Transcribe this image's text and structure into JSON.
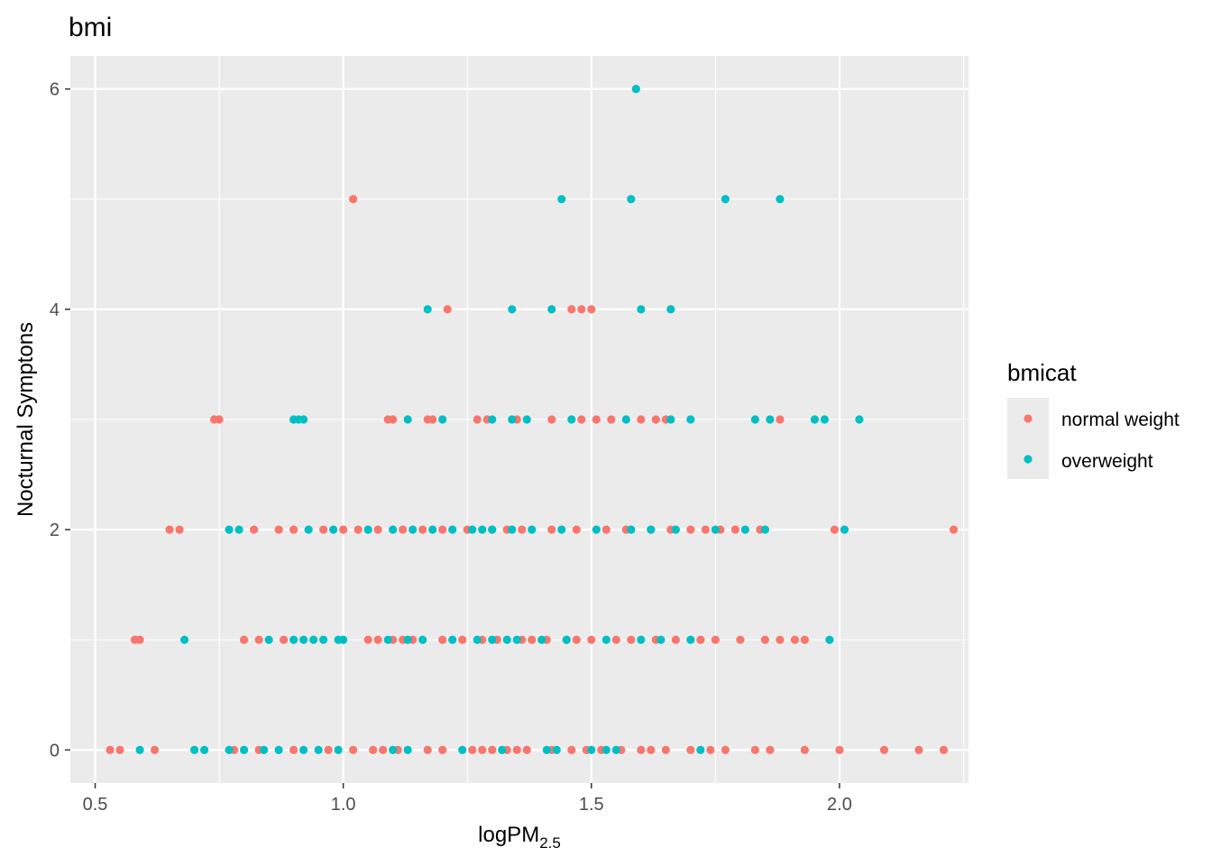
{
  "chart_data": {
    "type": "scatter",
    "title": "bmi",
    "xlabel": "logPM",
    "xlabel_sub": "2.5",
    "ylabel": "Nocturnal Symptons",
    "xlim": [
      0.45,
      2.26
    ],
    "ylim": [
      -0.3,
      6.3
    ],
    "x_ticks": [
      0.5,
      1.0,
      1.5,
      2.0
    ],
    "x_tick_labels": [
      "0.5",
      "1.0",
      "1.5",
      "2.0"
    ],
    "y_ticks": [
      0,
      2,
      4,
      6
    ],
    "y_tick_labels": [
      "0",
      "2",
      "4",
      "6"
    ],
    "grid": true,
    "legend_position": "right",
    "legend_title": "bmicat",
    "series": [
      {
        "name": "normal weight",
        "color": "#F8766D",
        "points": [
          [
            0.53,
            0
          ],
          [
            0.55,
            0
          ],
          [
            0.62,
            0
          ],
          [
            0.78,
            0
          ],
          [
            0.83,
            0
          ],
          [
            0.9,
            0
          ],
          [
            0.97,
            0
          ],
          [
            1.02,
            0
          ],
          [
            1.06,
            0
          ],
          [
            1.08,
            0
          ],
          [
            1.11,
            0
          ],
          [
            1.17,
            0
          ],
          [
            1.2,
            0
          ],
          [
            1.26,
            0
          ],
          [
            1.28,
            0
          ],
          [
            1.3,
            0
          ],
          [
            1.33,
            0
          ],
          [
            1.35,
            0
          ],
          [
            1.37,
            0
          ],
          [
            1.42,
            0
          ],
          [
            1.46,
            0
          ],
          [
            1.49,
            0
          ],
          [
            1.52,
            0
          ],
          [
            1.56,
            0
          ],
          [
            1.6,
            0
          ],
          [
            1.62,
            0
          ],
          [
            1.65,
            0
          ],
          [
            1.7,
            0
          ],
          [
            1.74,
            0
          ],
          [
            1.77,
            0
          ],
          [
            1.83,
            0
          ],
          [
            1.86,
            0
          ],
          [
            1.93,
            0
          ],
          [
            2.0,
            0
          ],
          [
            2.09,
            0
          ],
          [
            2.16,
            0
          ],
          [
            2.21,
            0
          ],
          [
            0.58,
            1
          ],
          [
            0.59,
            1
          ],
          [
            0.8,
            1
          ],
          [
            0.83,
            1
          ],
          [
            0.88,
            1
          ],
          [
            1.05,
            1
          ],
          [
            1.07,
            1
          ],
          [
            1.1,
            1
          ],
          [
            1.12,
            1
          ],
          [
            1.14,
            1
          ],
          [
            1.2,
            1
          ],
          [
            1.24,
            1
          ],
          [
            1.28,
            1
          ],
          [
            1.31,
            1
          ],
          [
            1.36,
            1
          ],
          [
            1.38,
            1
          ],
          [
            1.41,
            1
          ],
          [
            1.45,
            1
          ],
          [
            1.47,
            1
          ],
          [
            1.5,
            1
          ],
          [
            1.55,
            1
          ],
          [
            1.58,
            1
          ],
          [
            1.63,
            1
          ],
          [
            1.67,
            1
          ],
          [
            1.72,
            1
          ],
          [
            1.75,
            1
          ],
          [
            1.8,
            1
          ],
          [
            1.85,
            1
          ],
          [
            1.88,
            1
          ],
          [
            1.91,
            1
          ],
          [
            1.93,
            1
          ],
          [
            0.65,
            2
          ],
          [
            0.67,
            2
          ],
          [
            0.82,
            2
          ],
          [
            0.87,
            2
          ],
          [
            0.9,
            2
          ],
          [
            0.96,
            2
          ],
          [
            1.0,
            2
          ],
          [
            1.03,
            2
          ],
          [
            1.07,
            2
          ],
          [
            1.12,
            2
          ],
          [
            1.16,
            2
          ],
          [
            1.2,
            2
          ],
          [
            1.25,
            2
          ],
          [
            1.3,
            2
          ],
          [
            1.33,
            2
          ],
          [
            1.36,
            2
          ],
          [
            1.42,
            2
          ],
          [
            1.47,
            2
          ],
          [
            1.53,
            2
          ],
          [
            1.57,
            2
          ],
          [
            1.62,
            2
          ],
          [
            1.66,
            2
          ],
          [
            1.7,
            2
          ],
          [
            1.73,
            2
          ],
          [
            1.76,
            2
          ],
          [
            1.79,
            2
          ],
          [
            1.84,
            2
          ],
          [
            1.99,
            2
          ],
          [
            2.23,
            2
          ],
          [
            0.74,
            3
          ],
          [
            0.75,
            3
          ],
          [
            1.09,
            3
          ],
          [
            1.1,
            3
          ],
          [
            1.17,
            3
          ],
          [
            1.18,
            3
          ],
          [
            1.27,
            3
          ],
          [
            1.29,
            3
          ],
          [
            1.35,
            3
          ],
          [
            1.42,
            3
          ],
          [
            1.48,
            3
          ],
          [
            1.51,
            3
          ],
          [
            1.54,
            3
          ],
          [
            1.6,
            3
          ],
          [
            1.63,
            3
          ],
          [
            1.65,
            3
          ],
          [
            1.88,
            3
          ],
          [
            1.02,
            5
          ],
          [
            1.21,
            4
          ],
          [
            1.46,
            4
          ],
          [
            1.48,
            4
          ],
          [
            1.5,
            4
          ]
        ]
      },
      {
        "name": "overweight",
        "color": "#00BFC4",
        "points": [
          [
            0.59,
            0
          ],
          [
            0.7,
            0
          ],
          [
            0.72,
            0
          ],
          [
            0.77,
            0
          ],
          [
            0.8,
            0
          ],
          [
            0.84,
            0
          ],
          [
            0.87,
            0
          ],
          [
            0.92,
            0
          ],
          [
            0.95,
            0
          ],
          [
            0.99,
            0
          ],
          [
            1.1,
            0
          ],
          [
            1.13,
            0
          ],
          [
            1.24,
            0
          ],
          [
            1.32,
            0
          ],
          [
            1.41,
            0
          ],
          [
            1.43,
            0
          ],
          [
            1.5,
            0
          ],
          [
            1.53,
            0
          ],
          [
            1.55,
            0
          ],
          [
            1.72,
            0
          ],
          [
            0.68,
            1
          ],
          [
            0.85,
            1
          ],
          [
            0.9,
            1
          ],
          [
            0.92,
            1
          ],
          [
            0.94,
            1
          ],
          [
            0.96,
            1
          ],
          [
            0.99,
            1
          ],
          [
            1.0,
            1
          ],
          [
            1.09,
            1
          ],
          [
            1.13,
            1
          ],
          [
            1.16,
            1
          ],
          [
            1.22,
            1
          ],
          [
            1.27,
            1
          ],
          [
            1.3,
            1
          ],
          [
            1.33,
            1
          ],
          [
            1.35,
            1
          ],
          [
            1.4,
            1
          ],
          [
            1.45,
            1
          ],
          [
            1.53,
            1
          ],
          [
            1.6,
            1
          ],
          [
            1.64,
            1
          ],
          [
            1.7,
            1
          ],
          [
            1.98,
            1
          ],
          [
            0.77,
            2
          ],
          [
            0.79,
            2
          ],
          [
            0.93,
            2
          ],
          [
            0.98,
            2
          ],
          [
            1.05,
            2
          ],
          [
            1.1,
            2
          ],
          [
            1.14,
            2
          ],
          [
            1.18,
            2
          ],
          [
            1.22,
            2
          ],
          [
            1.26,
            2
          ],
          [
            1.28,
            2
          ],
          [
            1.3,
            2
          ],
          [
            1.34,
            2
          ],
          [
            1.38,
            2
          ],
          [
            1.44,
            2
          ],
          [
            1.51,
            2
          ],
          [
            1.58,
            2
          ],
          [
            1.62,
            2
          ],
          [
            1.67,
            2
          ],
          [
            1.75,
            2
          ],
          [
            1.81,
            2
          ],
          [
            1.85,
            2
          ],
          [
            2.01,
            2
          ],
          [
            0.9,
            3
          ],
          [
            0.91,
            3
          ],
          [
            0.92,
            3
          ],
          [
            1.13,
            3
          ],
          [
            1.2,
            3
          ],
          [
            1.3,
            3
          ],
          [
            1.34,
            3
          ],
          [
            1.37,
            3
          ],
          [
            1.46,
            3
          ],
          [
            1.57,
            3
          ],
          [
            1.66,
            3
          ],
          [
            1.7,
            3
          ],
          [
            1.83,
            3
          ],
          [
            1.86,
            3
          ],
          [
            1.95,
            3
          ],
          [
            1.97,
            3
          ],
          [
            2.04,
            3
          ],
          [
            1.17,
            4
          ],
          [
            1.34,
            4
          ],
          [
            1.42,
            4
          ],
          [
            1.6,
            4
          ],
          [
            1.66,
            4
          ],
          [
            1.44,
            5
          ],
          [
            1.58,
            5
          ],
          [
            1.77,
            5
          ],
          [
            1.88,
            5
          ],
          [
            1.59,
            6
          ]
        ]
      }
    ]
  }
}
